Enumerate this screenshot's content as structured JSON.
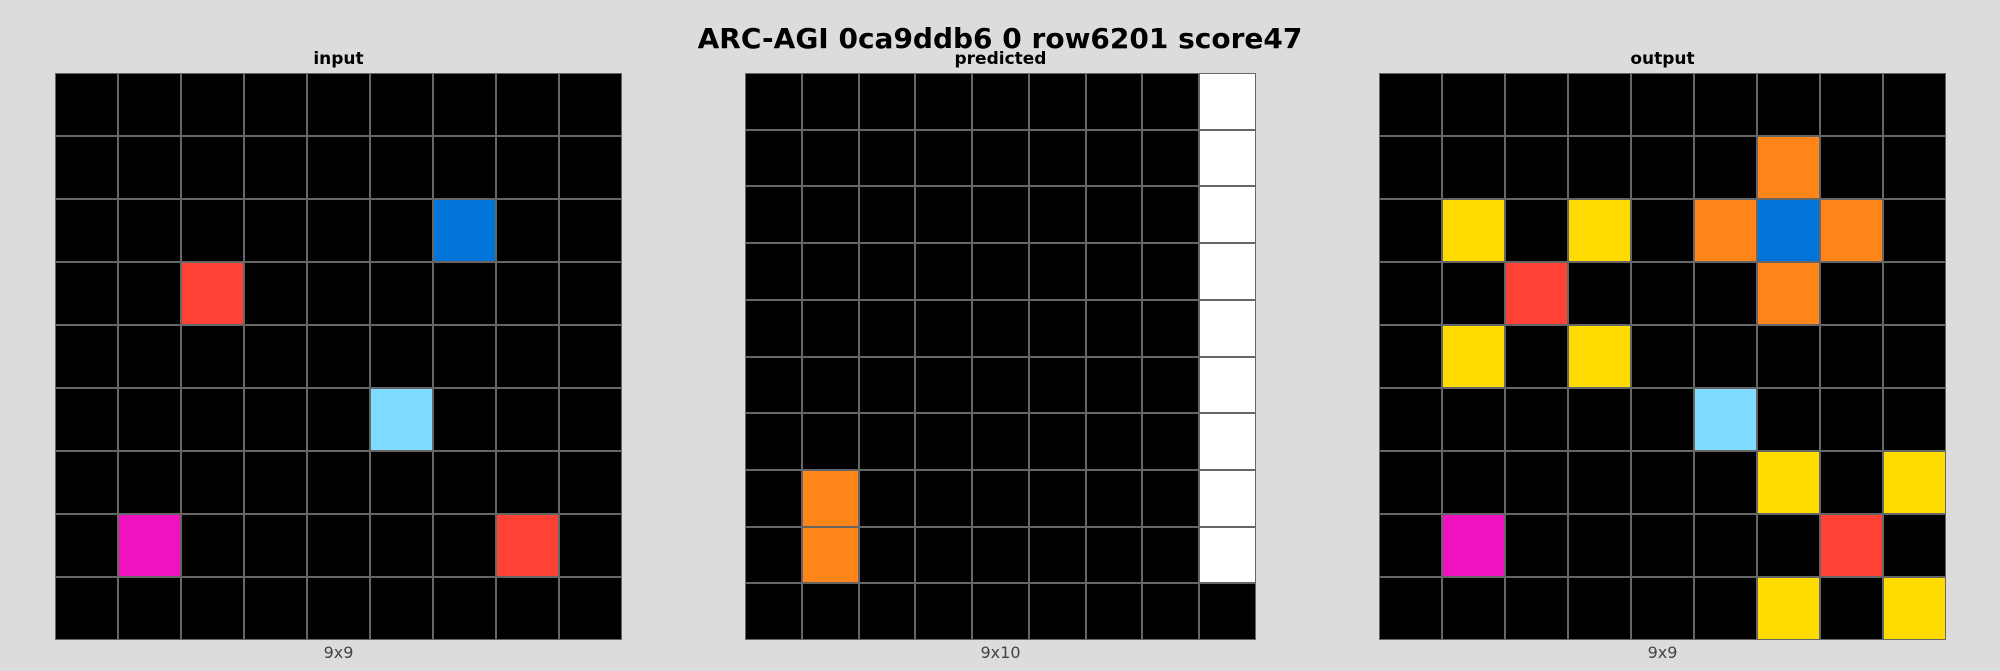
{
  "title": "ARC-AGI 0ca9ddb6 0 row6201 score47",
  "palette": {
    "0": "#000000",
    "1": "#0074d9",
    "2": "#ff4136",
    "4": "#ffdc00",
    "6": "#f012be",
    "7": "#ff851b",
    "8": "#7fdbff",
    "w": "#ffffff"
  },
  "panels": [
    {
      "label": "input",
      "dims": "9x9",
      "rows": 9,
      "cols": 9,
      "cells": [
        [
          "0",
          "0",
          "0",
          "0",
          "0",
          "0",
          "0",
          "0",
          "0"
        ],
        [
          "0",
          "0",
          "0",
          "0",
          "0",
          "0",
          "0",
          "0",
          "0"
        ],
        [
          "0",
          "0",
          "0",
          "0",
          "0",
          "0",
          "1",
          "0",
          "0"
        ],
        [
          "0",
          "0",
          "2",
          "0",
          "0",
          "0",
          "0",
          "0",
          "0"
        ],
        [
          "0",
          "0",
          "0",
          "0",
          "0",
          "0",
          "0",
          "0",
          "0"
        ],
        [
          "0",
          "0",
          "0",
          "0",
          "0",
          "8",
          "0",
          "0",
          "0"
        ],
        [
          "0",
          "0",
          "0",
          "0",
          "0",
          "0",
          "0",
          "0",
          "0"
        ],
        [
          "0",
          "6",
          "0",
          "0",
          "0",
          "0",
          "0",
          "2",
          "0"
        ],
        [
          "0",
          "0",
          "0",
          "0",
          "0",
          "0",
          "0",
          "0",
          "0"
        ]
      ]
    },
    {
      "label": "predicted",
      "dims": "9x10",
      "rows": 10,
      "cols": 9,
      "cells": [
        [
          "0",
          "0",
          "0",
          "0",
          "0",
          "0",
          "0",
          "0",
          "w"
        ],
        [
          "0",
          "0",
          "0",
          "0",
          "0",
          "0",
          "0",
          "0",
          "w"
        ],
        [
          "0",
          "0",
          "0",
          "0",
          "0",
          "0",
          "0",
          "0",
          "w"
        ],
        [
          "0",
          "0",
          "0",
          "0",
          "0",
          "0",
          "0",
          "0",
          "w"
        ],
        [
          "0",
          "0",
          "0",
          "0",
          "0",
          "0",
          "0",
          "0",
          "w"
        ],
        [
          "0",
          "0",
          "0",
          "0",
          "0",
          "0",
          "0",
          "0",
          "w"
        ],
        [
          "0",
          "0",
          "0",
          "0",
          "0",
          "0",
          "0",
          "0",
          "w"
        ],
        [
          "0",
          "7",
          "0",
          "0",
          "0",
          "0",
          "0",
          "0",
          "w"
        ],
        [
          "0",
          "7",
          "0",
          "0",
          "0",
          "0",
          "0",
          "0",
          "w"
        ],
        [
          "0",
          "0",
          "0",
          "0",
          "0",
          "0",
          "0",
          "0",
          "0"
        ]
      ]
    },
    {
      "label": "output",
      "dims": "9x9",
      "rows": 9,
      "cols": 9,
      "cells": [
        [
          "0",
          "0",
          "0",
          "0",
          "0",
          "0",
          "0",
          "0",
          "0"
        ],
        [
          "0",
          "0",
          "0",
          "0",
          "0",
          "0",
          "7",
          "0",
          "0"
        ],
        [
          "0",
          "4",
          "0",
          "4",
          "0",
          "7",
          "1",
          "7",
          "0"
        ],
        [
          "0",
          "0",
          "2",
          "0",
          "0",
          "0",
          "7",
          "0",
          "0"
        ],
        [
          "0",
          "4",
          "0",
          "4",
          "0",
          "0",
          "0",
          "0",
          "0"
        ],
        [
          "0",
          "0",
          "0",
          "0",
          "0",
          "8",
          "0",
          "0",
          "0"
        ],
        [
          "0",
          "0",
          "0",
          "0",
          "0",
          "0",
          "4",
          "0",
          "4"
        ],
        [
          "0",
          "6",
          "0",
          "0",
          "0",
          "0",
          "0",
          "2",
          "0"
        ],
        [
          "0",
          "0",
          "0",
          "0",
          "0",
          "0",
          "4",
          "0",
          "4"
        ]
      ]
    }
  ]
}
